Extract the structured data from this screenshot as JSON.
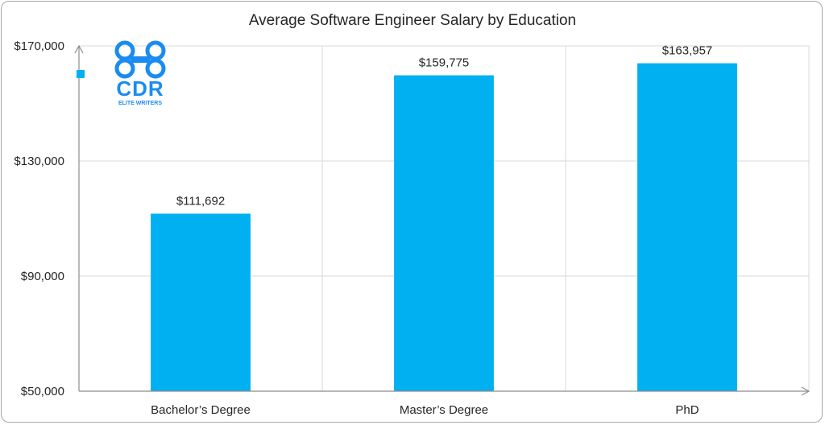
{
  "chart_data": {
    "type": "bar",
    "title": "Average Software Engineer Salary by Education",
    "categories": [
      "Bachelor’s Degree",
      "Master’s Degree",
      "PhD"
    ],
    "values": [
      111692,
      159775,
      163957
    ],
    "data_labels": [
      "$111,692",
      "$159,775",
      "$163,957"
    ],
    "y_ticks": [
      {
        "value": 50000,
        "label": "$50,000"
      },
      {
        "value": 90000,
        "label": "$90,000"
      },
      {
        "value": 130000,
        "label": "$130,000"
      },
      {
        "value": 170000,
        "label": "$170,000"
      }
    ],
    "ylim": [
      50000,
      170000
    ],
    "xlabel": "",
    "ylabel": "",
    "grid": true,
    "legend": "none",
    "bar_color": "#00b0f0",
    "grid_color": "#d9d9d9",
    "axis_color": "#8c8c8c"
  },
  "logo": {
    "text": "CDR",
    "subtext": "ELITE WRITERS",
    "color": "#1a8cf0"
  }
}
